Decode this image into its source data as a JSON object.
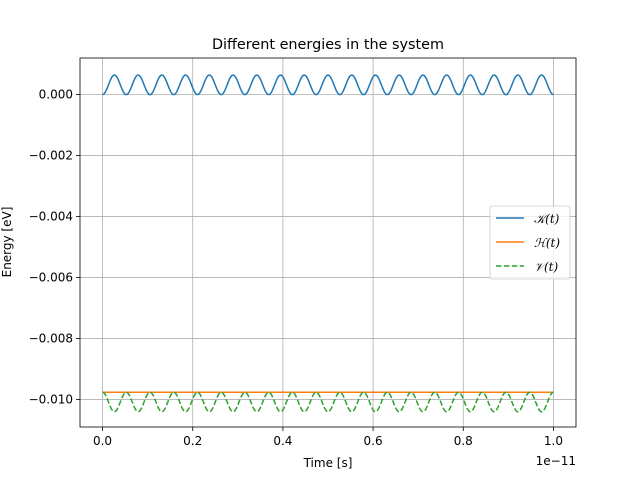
{
  "chart_data": {
    "type": "line",
    "title": "Different energies in the system",
    "xlabel": "Time [s]",
    "ylabel": "Energy [eV]",
    "x_offset_label": "1e−11",
    "xlim": [
      -0.05,
      1.05
    ],
    "ylim": [
      -0.0109,
      0.0012
    ],
    "x_scale": 1e-11,
    "xticks": [
      0.0,
      0.2,
      0.4,
      0.6,
      0.8,
      1.0
    ],
    "xtick_labels": [
      "0.0",
      "0.2",
      "0.4",
      "0.6",
      "0.8",
      "1.0"
    ],
    "yticks": [
      0.0,
      -0.002,
      -0.004,
      -0.006,
      -0.008,
      -0.01
    ],
    "ytick_labels": [
      "0.000",
      "−0.002",
      "−0.004",
      "−0.006",
      "−0.008",
      "−0.010"
    ],
    "grid": true,
    "legend_position": "center-right",
    "oscillation": {
      "cycles": 19,
      "amplitude": 0.00064
    },
    "series": [
      {
        "name": "𝒦(t)",
        "kind": "kinetic",
        "color": "#1f77b4",
        "dash": "solid",
        "baseline": 0.0,
        "min": 0.0,
        "max": 0.00064,
        "x_end": 1.0
      },
      {
        "name": "ℋ(t)",
        "kind": "total",
        "color": "#ff7f0e",
        "dash": "solid",
        "value": -0.00976,
        "x_end": 1.0
      },
      {
        "name": "𝒱(t)",
        "kind": "potential",
        "color": "#2ca02c",
        "dash": "dashed",
        "min": -0.0104,
        "max": -0.00976,
        "x_end": 1.0
      }
    ]
  }
}
